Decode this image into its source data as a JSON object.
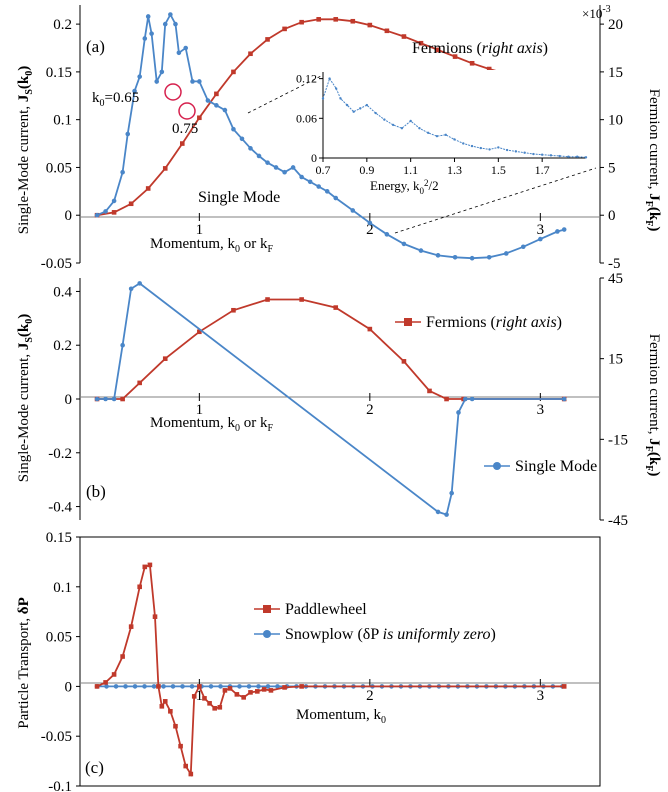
{
  "colors": {
    "blue": "#4a86c8",
    "red": "#c0392b",
    "axis": "#000000",
    "zero": "#808080"
  },
  "chart_data": [
    {
      "panel_label": "(a)",
      "type": "line",
      "ylabel": "Single-Mode current, ",
      "ylabel_bold": "J",
      "ylabel_sub": "S",
      "ylabel_tail": "(k",
      "ylabel_tail_sub": "0",
      "ylabel_close": ")",
      "ylabel_right": "Fermion current, ",
      "ylabel_right_bold": "J",
      "ylabel_right_sub": "F",
      "ylabel_right_tail": "(k",
      "ylabel_right_tail_sub": "F",
      "ylabel_right_close": ")",
      "right_scale": "×10",
      "right_scale_exp": "-3",
      "xlabel": "Momentum, k",
      "xlabel_sub0": "0",
      "xlabel_mid": " or k",
      "xlabel_subF": "F",
      "xlim": [
        0.3,
        3.35
      ],
      "ylim": [
        -0.05,
        0.22
      ],
      "ylim_right": [
        -5,
        22
      ],
      "xticks": [
        "1",
        "2",
        "3"
      ],
      "yticks": [
        "0.2",
        "0.15",
        "0.1",
        "0.05",
        "0",
        "-0.05"
      ],
      "yticks_right": [
        "20",
        "15",
        "10",
        "5",
        "0",
        "-5"
      ],
      "annotations": {
        "k0_label": "k",
        "k0_sub": "0",
        "k0_value": "=0.65",
        "k075": "0.75",
        "single_mode": "Single Mode",
        "fermions": "Fermions (",
        "fermions_italic": "right axis",
        "fermions_close": ")"
      },
      "series": [
        {
          "name": "Single Mode",
          "axis": "left",
          "x": [
            0.4,
            0.45,
            0.5,
            0.55,
            0.58,
            0.62,
            0.65,
            0.68,
            0.7,
            0.72,
            0.75,
            0.78,
            0.8,
            0.83,
            0.86,
            0.88,
            0.92,
            0.96,
            1.0,
            1.05,
            1.1,
            1.15,
            1.2,
            1.25,
            1.3,
            1.35,
            1.4,
            1.45,
            1.5,
            1.55,
            1.6,
            1.65,
            1.7,
            1.75,
            1.8,
            1.9,
            2.0,
            2.1,
            2.2,
            2.3,
            2.4,
            2.5,
            2.6,
            2.7,
            2.8,
            2.9,
            3.0,
            3.1,
            3.14
          ],
          "y": [
            0.0,
            0.004,
            0.015,
            0.045,
            0.085,
            0.13,
            0.145,
            0.185,
            0.208,
            0.19,
            0.14,
            0.15,
            0.2,
            0.21,
            0.2,
            0.17,
            0.175,
            0.14,
            0.14,
            0.12,
            0.115,
            0.11,
            0.09,
            0.08,
            0.07,
            0.062,
            0.055,
            0.05,
            0.045,
            0.05,
            0.04,
            0.035,
            0.03,
            0.025,
            0.018,
            0.005,
            -0.008,
            -0.02,
            -0.03,
            -0.037,
            -0.042,
            -0.044,
            -0.045,
            -0.044,
            -0.04,
            -0.033,
            -0.025,
            -0.017,
            -0.015
          ]
        },
        {
          "name": "Fermions",
          "axis": "right",
          "x": [
            0.4,
            0.5,
            0.6,
            0.7,
            0.8,
            0.9,
            1.0,
            1.1,
            1.2,
            1.3,
            1.4,
            1.5,
            1.6,
            1.7,
            1.8,
            1.9,
            2.0,
            2.1,
            2.2,
            2.3,
            2.4,
            2.5,
            2.6,
            2.7,
            2.8,
            2.9,
            3.0,
            3.1,
            3.14
          ],
          "y": [
            0.0,
            0.3,
            1.2,
            2.8,
            4.9,
            7.5,
            10.2,
            12.7,
            15.0,
            16.9,
            18.4,
            19.5,
            20.2,
            20.5,
            20.5,
            20.3,
            19.9,
            19.3,
            18.7,
            18.0,
            17.3,
            16.6,
            15.9,
            15.3,
            14.8,
            14.4,
            14.1,
            13.9,
            13.9
          ]
        }
      ],
      "inset": {
        "xlabel": "Energy, k",
        "xlabel_sub": "0",
        "xlabel_sup": "2",
        "xlabel_tail": "/2",
        "xticks": [
          "0.7",
          "0.9",
          "1.1",
          "1.3",
          "1.5",
          "1.7"
        ],
        "yticks": [
          "0.12",
          "0.06",
          "0"
        ],
        "xlim": [
          0.7,
          1.9
        ],
        "ylim": [
          0,
          0.13
        ],
        "x": [
          0.7,
          0.73,
          0.76,
          0.78,
          0.81,
          0.84,
          0.87,
          0.9,
          0.94,
          0.98,
          1.02,
          1.06,
          1.1,
          1.14,
          1.18,
          1.22,
          1.26,
          1.3,
          1.34,
          1.38,
          1.42,
          1.46,
          1.5,
          1.54,
          1.58,
          1.62,
          1.66,
          1.7,
          1.74,
          1.78,
          1.82,
          1.86,
          1.9
        ],
        "y": [
          0.09,
          0.12,
          0.105,
          0.09,
          0.08,
          0.07,
          0.075,
          0.08,
          0.068,
          0.058,
          0.05,
          0.045,
          0.056,
          0.045,
          0.038,
          0.033,
          0.035,
          0.028,
          0.022,
          0.018,
          0.015,
          0.013,
          0.016,
          0.012,
          0.01,
          0.008,
          0.006,
          0.005,
          0.004,
          0.003,
          0.002,
          0.002,
          0.001
        ]
      }
    },
    {
      "panel_label": "(b)",
      "type": "line",
      "ylabel": "Single-Mode current, ",
      "ylabel_bold": "J",
      "ylabel_sub": "S",
      "ylabel_tail": "(k",
      "ylabel_tail_sub": "0",
      "ylabel_close": ")",
      "ylabel_right": "Fermion current, ",
      "ylabel_right_bold": "J",
      "ylabel_right_sub": "F",
      "ylabel_right_tail": "(k",
      "ylabel_right_tail_sub": "F",
      "ylabel_right_close": ")",
      "xlabel": "Momentum, k",
      "xlabel_sub0": "0",
      "xlabel_mid": " or k",
      "xlabel_subF": "F",
      "xlim": [
        0.3,
        3.35
      ],
      "ylim": [
        -0.45,
        0.45
      ],
      "ylim_right": [
        -45,
        45
      ],
      "xticks": [
        "1",
        "2",
        "3"
      ],
      "yticks": [
        "0.4",
        "0.2",
        "0",
        "-0.2",
        "-0.4"
      ],
      "yticks_right": [
        "45",
        "15",
        "-15",
        "-45"
      ],
      "legend": {
        "fermions": "Fermions (",
        "fermions_italic": "right axis",
        "fermions_close": ")",
        "single_mode": "Single Mode"
      },
      "series": [
        {
          "name": "Single Mode",
          "axis": "left",
          "x": [
            0.4,
            0.45,
            0.5,
            0.55,
            0.6,
            0.65,
            2.4,
            2.45,
            2.48,
            2.52,
            2.56,
            2.6,
            3.14
          ],
          "y": [
            0.0,
            0.0,
            0.0,
            0.2,
            0.41,
            0.43,
            -0.42,
            -0.43,
            -0.35,
            -0.05,
            0.0,
            0.0,
            0.0
          ]
        },
        {
          "name": "Fermions",
          "axis": "right",
          "x": [
            0.4,
            0.55,
            0.65,
            0.8,
            1.0,
            1.2,
            1.4,
            1.6,
            1.8,
            2.0,
            2.2,
            2.35,
            2.45,
            2.55,
            3.14
          ],
          "y": [
            0.0,
            0.0,
            6.0,
            15.0,
            25.0,
            33.0,
            37.0,
            37.0,
            34.0,
            26.0,
            14.0,
            3.0,
            0.0,
            0.0,
            0.0
          ]
        }
      ]
    },
    {
      "panel_label": "(c)",
      "type": "line",
      "ylabel": "Particle Transport, ",
      "ylabel_bold": "δP",
      "xlabel": "Momentum,  k",
      "xlabel_sub0": "0",
      "xlim": [
        0.3,
        3.35
      ],
      "ylim": [
        -0.1,
        0.15
      ],
      "xticks": [
        "1",
        "2",
        "3"
      ],
      "yticks": [
        "0.15",
        "0.1",
        "0.05",
        "0",
        "-0.05",
        "-0.1"
      ],
      "legend": {
        "paddlewheel": "Paddlewheel",
        "snowplow": "Snowplow  (δP ",
        "snowplow_italic": "is uniformly zero",
        "snowplow_close": ")"
      },
      "series": [
        {
          "name": "Paddlewheel",
          "x": [
            0.4,
            0.45,
            0.5,
            0.55,
            0.6,
            0.65,
            0.68,
            0.71,
            0.74,
            0.76,
            0.78,
            0.8,
            0.83,
            0.86,
            0.89,
            0.92,
            0.95,
            0.97,
            1.0,
            1.03,
            1.06,
            1.09,
            1.12,
            1.15,
            1.18,
            1.22,
            1.26,
            1.3,
            1.34,
            1.38,
            1.42,
            1.5,
            1.6,
            3.14
          ],
          "y": [
            0.0,
            0.004,
            0.012,
            0.03,
            0.06,
            0.1,
            0.12,
            0.122,
            0.07,
            0.0,
            -0.02,
            -0.015,
            -0.025,
            -0.04,
            -0.06,
            -0.08,
            -0.088,
            -0.01,
            0.0,
            -0.012,
            -0.017,
            -0.022,
            -0.021,
            -0.004,
            -0.002,
            -0.008,
            -0.011,
            -0.006,
            -0.005,
            -0.003,
            -0.004,
            -0.001,
            0.0,
            0.0
          ]
        },
        {
          "name": "Snowplow",
          "x": [
            0.4,
            3.14
          ],
          "y": [
            0.0,
            0.0
          ]
        }
      ]
    }
  ]
}
